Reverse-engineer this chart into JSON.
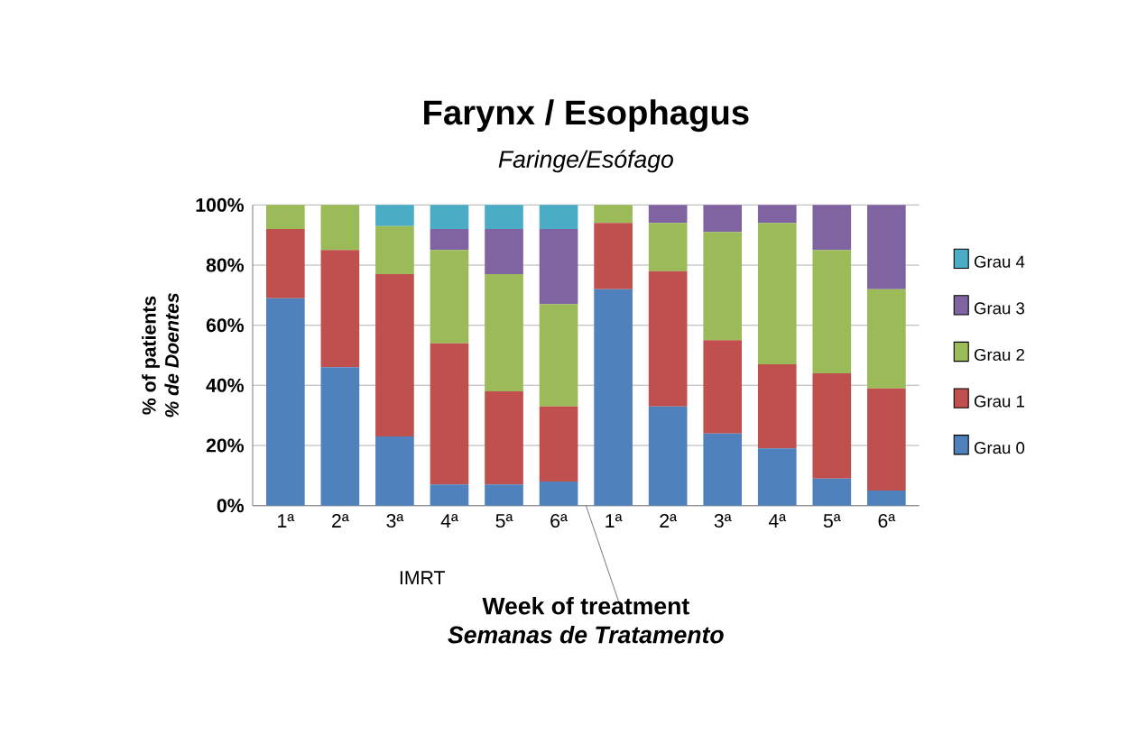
{
  "chart_data": {
    "type": "bar",
    "title": "Farynx / Esophagus",
    "subtitle": "Faringe/Esófago",
    "xlabel": "Week of treatment",
    "ylabel": "% of patients",
    "annotations": [
      "% de Doentes",
      "Semanas de Tratamento",
      "IMRT"
    ],
    "categories": [
      "1ª",
      "2ª",
      "3ª",
      "4ª",
      "5ª",
      "6ª",
      "1ª",
      "2ª",
      "3ª",
      "4ª",
      "5ª",
      "6ª"
    ],
    "stacked": true,
    "series": [
      {
        "name": "Grau 0",
        "color": "#4f81bd",
        "values": [
          69,
          46,
          23,
          7,
          7,
          8,
          72,
          33,
          24,
          19,
          9,
          5
        ]
      },
      {
        "name": "Grau 1",
        "color": "#c0504d",
        "values": [
          23,
          39,
          54,
          47,
          31,
          25,
          22,
          45,
          31,
          28,
          35,
          34
        ]
      },
      {
        "name": "Grau 2",
        "color": "#9bbb59",
        "values": [
          8,
          15,
          16,
          31,
          39,
          34,
          6,
          16,
          36,
          47,
          41,
          33
        ]
      },
      {
        "name": "Grau 3",
        "color": "#8064a2",
        "values": [
          0,
          0,
          0,
          7,
          15,
          25,
          0,
          6,
          9,
          6,
          15,
          28
        ]
      },
      {
        "name": "Grau 4",
        "color": "#4bacc6",
        "values": [
          0,
          0,
          7,
          8,
          8,
          8,
          0,
          0,
          0,
          0,
          0,
          0
        ]
      }
    ],
    "ylim": [
      0,
      100
    ],
    "yticks": [
      {
        "value": 0,
        "label": "0%"
      },
      {
        "value": 20,
        "label": "20%"
      },
      {
        "value": 40,
        "label": "40%"
      },
      {
        "value": 60,
        "label": "60%"
      },
      {
        "value": 80,
        "label": "80%"
      },
      {
        "value": 100,
        "label": "100%"
      }
    ],
    "grid": "y",
    "legend": "right"
  }
}
